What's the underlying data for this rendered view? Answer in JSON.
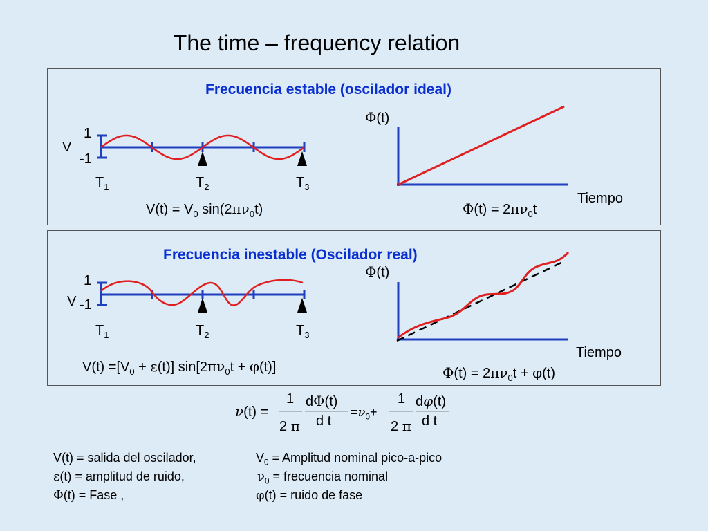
{
  "title": "The time – frequency relation",
  "stable": {
    "heading": "Frecuencia estable (oscilador ideal)",
    "v_label": "V",
    "tick_pos": "1",
    "tick_neg": "-1",
    "t_labels": [
      {
        "t": "T",
        "s": "1"
      },
      {
        "t": "T",
        "s": "2"
      },
      {
        "t": "T",
        "s": "3"
      }
    ],
    "phase_axis": "(t)",
    "time_axis": "Tiempo",
    "eq_v": {
      "a": "V(t) = V",
      "sub0": "0",
      "b": " sin(2",
      "pi": "π",
      "nu": "ν",
      "sub1": "0",
      "c": "t)"
    },
    "eq_phi": {
      "phi": "Φ",
      "a": "(t) = 2",
      "pi": "π",
      "nu": "ν",
      "sub": "0",
      "b": "t"
    }
  },
  "unstable": {
    "heading": "Frecuencia inestable (Oscilador real)",
    "v_label": "V",
    "tick_pos": "1",
    "tick_neg": "-1",
    "t_labels": [
      {
        "t": "T",
        "s": "1"
      },
      {
        "t": "T",
        "s": "2"
      },
      {
        "t": "T",
        "s": "3"
      }
    ],
    "phase_axis": "(t)",
    "time_axis": "Tiempo",
    "eq_v": {
      "a": "V(t) =[V",
      "sub0": "0",
      "b": " + ",
      "eps": "ε",
      "c": "(t)] sin[2",
      "pi": "π",
      "nu": "ν",
      "sub1": "0",
      "d": "t + ",
      "phi": "φ",
      "e": "(t)]"
    },
    "eq_phi": {
      "Phi": "Φ",
      "a": "(t) = 2",
      "pi": "π",
      "nu": "ν",
      "sub": "0",
      "b": "t + ",
      "phi": "φ",
      "c": "(t)"
    }
  },
  "formula": {
    "nu": "ν",
    "lhs": "(t) =",
    "one1": "1",
    "den1": "2",
    "pi1": "π",
    "dPhi": "d",
    "Phi": "Φ",
    "t1": "(t)",
    "dt1": "d t",
    "eq": "=",
    "nu0": "ν",
    "sub0": "0",
    "plus": "+",
    "one2": "1",
    "den2": "2",
    "pi2": "π",
    "d2": "d",
    "phi2": "φ",
    "t2": "(t)",
    "dt2": "d t"
  },
  "legend": {
    "l1a": "V(t) = salida del oscilador,",
    "r1a": "V",
    "r1sub": "0",
    "r1b": " = Amplitud nominal pico-a-pico",
    "l2g": "ε",
    "l2a": "(t) = amplitud de ruido,",
    "r2g": "ν",
    "r2sub": "0",
    "r2b": " = frecuencia nominal",
    "l3g": "Φ",
    "l3a": "(t) = Fase ,",
    "r3g": "φ",
    "r3a": "(t) = ruido de fase"
  },
  "colors": {
    "axis": "#1f3fbf",
    "curve": "#e02020",
    "heading": "#0a2fd0"
  }
}
